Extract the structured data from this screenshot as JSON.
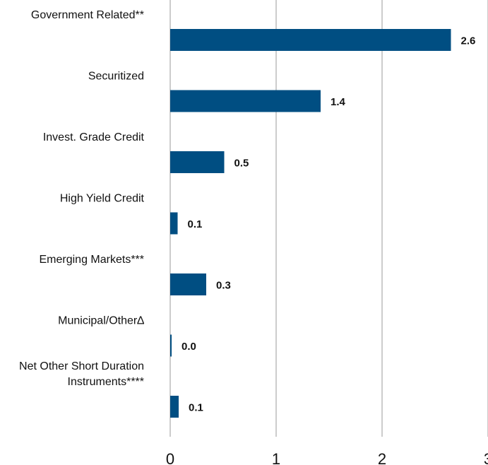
{
  "chart_data": {
    "type": "bar",
    "orientation": "horizontal",
    "categories": [
      [
        "Government Related**"
      ],
      [
        "Securitized"
      ],
      [
        "Invest. Grade Credit"
      ],
      [
        "High Yield Credit"
      ],
      [
        "Emerging Markets***"
      ],
      [
        "Municipal/Other∆"
      ],
      [
        "Net Other Short Duration",
        "Instruments****"
      ]
    ],
    "values": [
      2.65,
      1.42,
      0.51,
      0.07,
      0.34,
      0.01,
      0.08
    ],
    "value_labels": [
      "2.6",
      "1.4",
      "0.5",
      "0.1",
      "0.3",
      "0.0",
      "0.1"
    ],
    "xticks": [
      "0",
      "1",
      "2",
      "3"
    ],
    "xlim": [
      0,
      3
    ],
    "grid": true,
    "legend": "none",
    "colors": {
      "bar": "#004E82",
      "grid": "#9a9a9a",
      "text": "#111111"
    }
  }
}
